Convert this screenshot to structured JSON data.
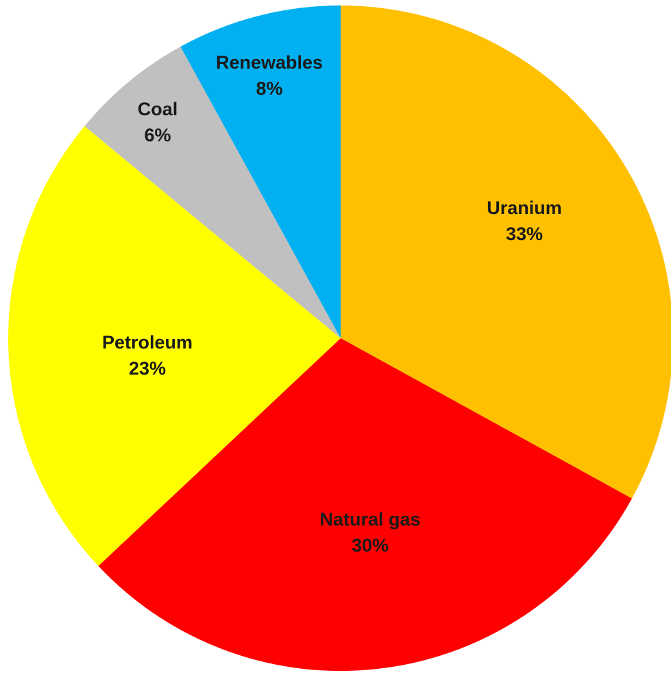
{
  "chart_data": {
    "type": "pie",
    "title": "",
    "start": "12 o'clock",
    "direction": "clockwise",
    "slices": [
      {
        "label": "Uranium",
        "value": 33,
        "value_label": "33%",
        "color": "#FFC000"
      },
      {
        "label": "Natural gas",
        "value": 30,
        "value_label": "30%",
        "color": "#FF0000"
      },
      {
        "label": "Petroleum",
        "value": 23,
        "value_label": "23%",
        "color": "#FFFF00"
      },
      {
        "label": "Coal",
        "value": 6,
        "value_label": "6%",
        "color": "#C0C0C0"
      },
      {
        "label": "Renewables",
        "value": 8,
        "value_label": "8%",
        "color": "#00B0F0"
      }
    ],
    "legend": "none"
  }
}
